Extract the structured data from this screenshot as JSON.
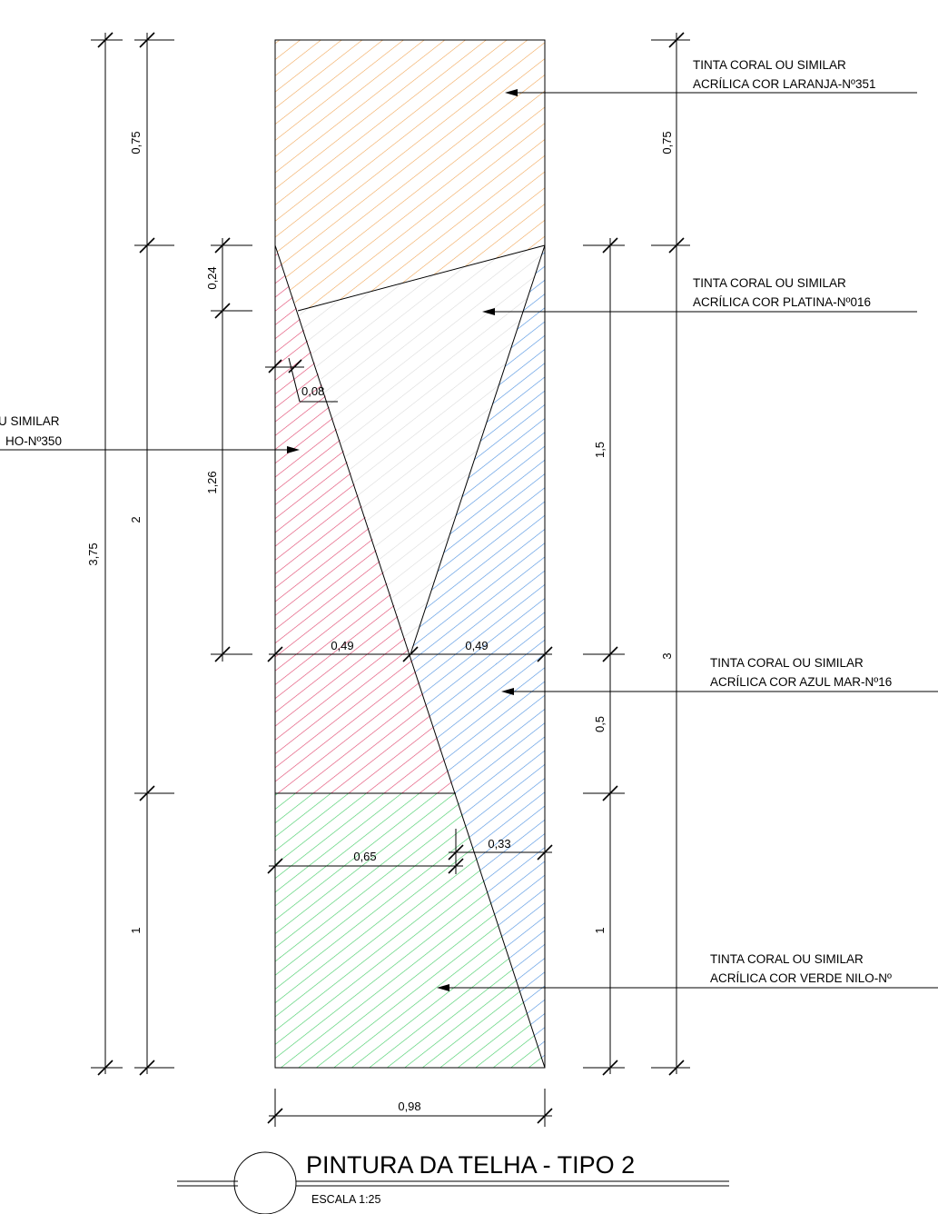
{
  "title": "PINTURA DA TELHA - TIPO 2",
  "scale": "ESCALA 1:25",
  "colors": {
    "orange": "#f0a04b",
    "platinum": "#d8d8d8",
    "red": "#e0416a",
    "blue": "#4a8fe0",
    "green": "#3ecb62"
  },
  "notes": [
    {
      "line1": "TINTA CORAL OU SIMILAR",
      "line2": "ACRÍLICA COR LARANJA-Nº351"
    },
    {
      "line1": "TINTA CORAL OU SIMILAR",
      "line2": "ACRÍLICA COR PLATINA-Nº016"
    },
    {
      "line1": "U SIMILAR",
      "line2": "HO-Nº350"
    },
    {
      "line1": "TINTA CORAL OU SIMILAR",
      "line2": "ACRÍLICA COR AZUL MAR-Nº16"
    },
    {
      "line1": "TINTA CORAL OU SIMILAR",
      "line2": "ACRÍLICA COR VERDE NILO-Nº"
    }
  ],
  "dimensions": {
    "total_height": "3,75",
    "left_top": "0,75",
    "left_mid": "2",
    "left_bottom": "1",
    "inner_024": "0,24",
    "inner_126": "1,26",
    "inner_008": "0,08",
    "right_top": "0,75",
    "right_total": "3",
    "right_15": "1,5",
    "right_05": "0,5",
    "right_1": "1",
    "mid_left": "0,49",
    "mid_right": "0,49",
    "green_width": "0,65",
    "blue_width": "0,33",
    "total_width": "0,98"
  }
}
